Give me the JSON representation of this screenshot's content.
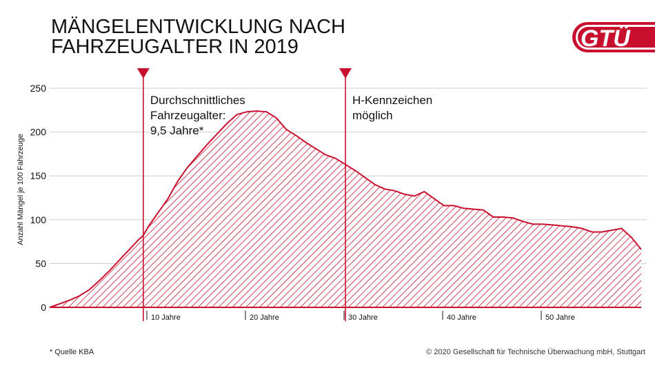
{
  "header": {
    "title_line1": "MÄNGELENTWICKLUNG NACH",
    "title_line2": "FAHRZEUGALTER IN 2019",
    "logo_text": "GTÜ"
  },
  "footer": {
    "source_note": "*  Quelle KBA",
    "copyright": "© 2020 Gesellschaft für Technische Überwachung mbH, Stuttgart"
  },
  "colors": {
    "accent": "#c8102e",
    "grid": "#cccccc",
    "text": "#111111"
  },
  "chart_data": {
    "type": "area",
    "title": "MÄNGELENTWICKLUNG NACH FAHRZEUGALTER IN 2019",
    "xlabel": "",
    "ylabel": "Anzahl Mängel je 100 Fahrzeuge",
    "xlim": [
      0,
      60
    ],
    "ylim": [
      0,
      250
    ],
    "y_ticks": [
      0,
      50,
      100,
      150,
      200,
      250
    ],
    "x_ticks": [
      {
        "value": 10,
        "label": "10 Jahre"
      },
      {
        "value": 20,
        "label": "20 Jahre"
      },
      {
        "value": 30,
        "label": "30 Jahre"
      },
      {
        "value": 40,
        "label": "40 Jahre"
      },
      {
        "value": 50,
        "label": "50 Jahre"
      }
    ],
    "grid": true,
    "fill": "diagonal-hatch",
    "x": [
      0,
      1,
      2,
      3,
      4,
      5,
      6,
      7,
      8,
      9,
      9.5,
      10,
      11,
      12,
      13,
      14,
      15,
      16,
      17,
      18,
      19,
      20,
      21,
      22,
      23,
      24,
      25,
      26,
      27,
      28,
      29,
      30,
      31,
      32,
      33,
      34,
      35,
      36,
      37,
      38,
      39,
      40,
      41,
      42,
      43,
      44,
      45,
      46,
      47,
      48,
      49,
      50,
      51,
      52,
      53,
      54,
      55,
      56,
      57,
      58,
      59,
      60
    ],
    "values": [
      0,
      4,
      8,
      13,
      20,
      30,
      41,
      53,
      65,
      77,
      82,
      92,
      108,
      124,
      144,
      160,
      173,
      186,
      198,
      210,
      220,
      223,
      224,
      223,
      216,
      203,
      196,
      188,
      181,
      174,
      170,
      163,
      156,
      148,
      140,
      135,
      133,
      129,
      127,
      132,
      124,
      116,
      116,
      113,
      112,
      111,
      103,
      103,
      102,
      98,
      95,
      95,
      94,
      93,
      92,
      90,
      86,
      86,
      88,
      90,
      80,
      66
    ],
    "annotations": [
      {
        "x": 9.5,
        "text_lines": [
          "Durchschnittliches",
          "Fahrzeugalter:",
          "9,5 Jahre*"
        ]
      },
      {
        "x": 30,
        "text_lines": [
          "H-Kennzeichen",
          "möglich"
        ]
      }
    ]
  }
}
